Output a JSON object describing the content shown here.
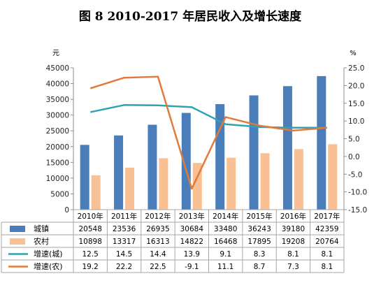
{
  "chart_data": {
    "type": "bar",
    "title": "图 8    2010-2017 年居民收入及增长速度",
    "categories": [
      "2010年",
      "2011年",
      "2012年",
      "2013年",
      "2014年",
      "2015年",
      "2016年",
      "2017年"
    ],
    "y_left": {
      "unit": "元",
      "min": 0,
      "max": 45000,
      "step": 5000,
      "ticks": [
        "0",
        "5000",
        "10000",
        "15000",
        "20000",
        "25000",
        "30000",
        "35000",
        "40000",
        "45000"
      ]
    },
    "y_right": {
      "unit": "%",
      "min": -15,
      "max": 25,
      "step": 5,
      "ticks": [
        "-15.0",
        "-10.0",
        "-5.0",
        "0.0",
        "5.0",
        "10.0",
        "15.0",
        "20.0",
        "25.0"
      ]
    },
    "series": [
      {
        "name": "城镇",
        "kind": "bar",
        "axis": "left",
        "color": "#4a7ebb",
        "values": [
          20548,
          23536,
          26935,
          30684,
          33480,
          36243,
          39180,
          42359
        ],
        "labels": [
          "20548",
          "23536",
          "26935",
          "30684",
          "33480",
          "36243",
          "39180",
          "42359"
        ]
      },
      {
        "name": "农村",
        "kind": "bar",
        "axis": "left",
        "color": "#f9c093",
        "values": [
          10898,
          13317,
          16313,
          14822,
          16468,
          17895,
          19208,
          20764
        ],
        "labels": [
          "10898",
          "13317",
          "16313",
          "14822",
          "16468",
          "17895",
          "19208",
          "20764"
        ]
      },
      {
        "name": "增速(城)",
        "kind": "line",
        "axis": "right",
        "color": "#31a2b3",
        "values": [
          12.5,
          14.5,
          14.4,
          13.9,
          9.1,
          8.3,
          8.1,
          8.1
        ],
        "labels": [
          "12.5",
          "14.5",
          "14.4",
          "13.9",
          "9.1",
          "8.3",
          "8.1",
          "8.1"
        ]
      },
      {
        "name": "增速(农)",
        "kind": "line",
        "axis": "right",
        "color": "#e07b39",
        "values": [
          19.2,
          22.2,
          22.5,
          -9.1,
          11.1,
          8.7,
          7.3,
          8.1
        ],
        "labels": [
          "19.2",
          "22.2",
          "22.5",
          "-9.1",
          "11.1",
          "8.7",
          "7.3",
          "8.1"
        ]
      }
    ]
  }
}
